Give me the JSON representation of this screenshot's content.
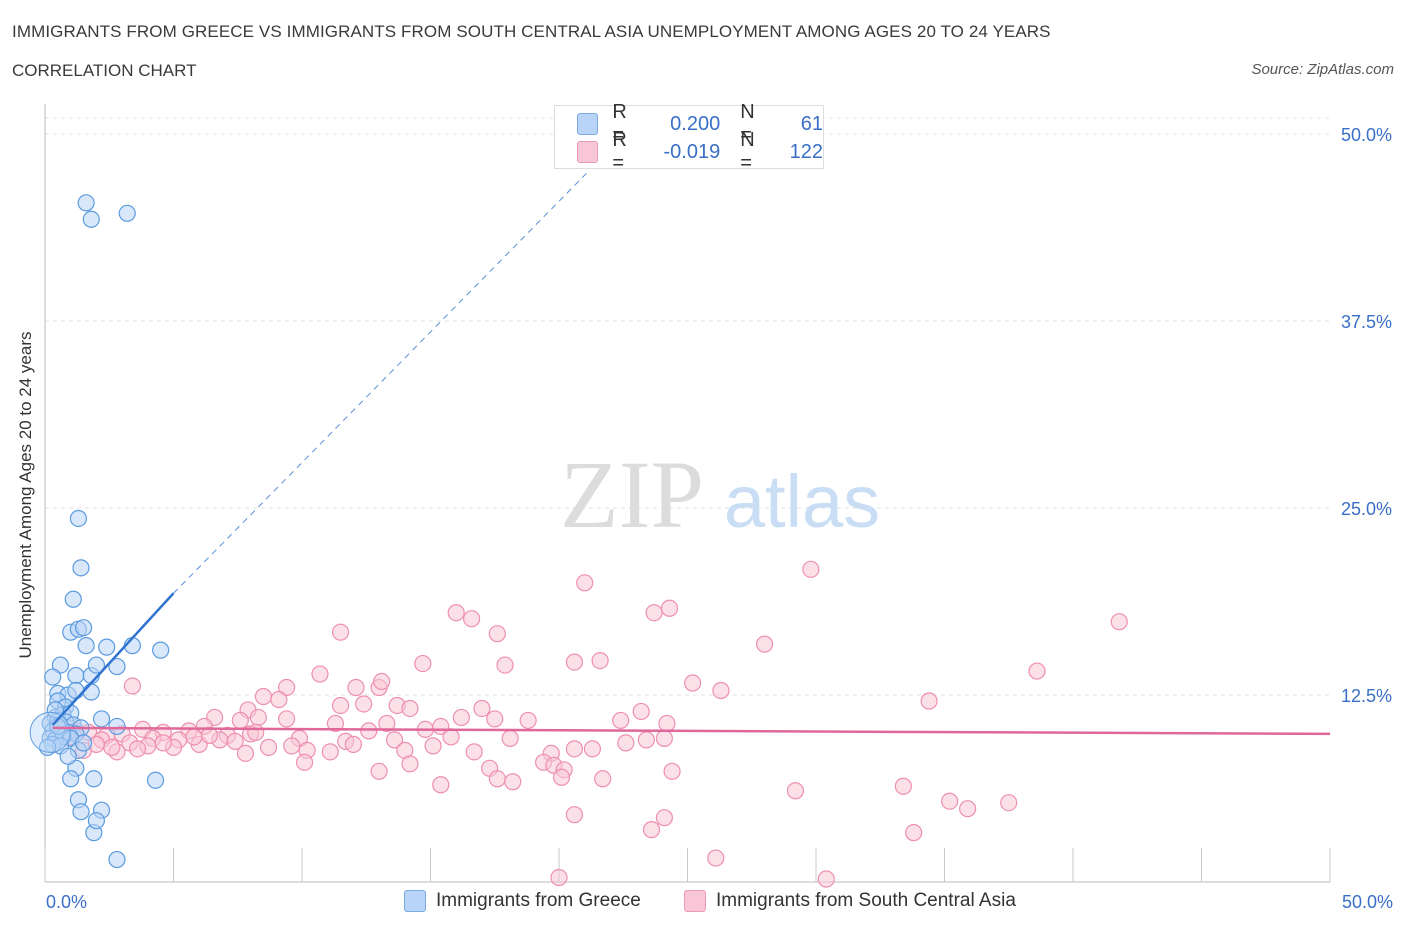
{
  "header": {
    "title": "IMMIGRANTS FROM GREECE VS IMMIGRANTS FROM SOUTH CENTRAL ASIA UNEMPLOYMENT AMONG AGES 20 TO 24 YEARS",
    "subtitle": "CORRELATION CHART",
    "source": "Source: ZipAtlas.com"
  },
  "legend": {
    "r_label": "R =",
    "n_label": "N =",
    "blue_r": "0.200",
    "blue_n": "61",
    "pink_r": "-0.019",
    "pink_n": "122"
  },
  "watermark": {
    "zip": "ZIP",
    "atlas": "atlas"
  },
  "colors": {
    "blue": "#5b9be0",
    "blue_fill": "#b8d4f6",
    "blue_line": "#2f74d0",
    "pink": "#ee8fb0",
    "pink_fill": "#f8c6d6",
    "pink_line": "#e0679a",
    "tick_text": "#3a6fc8",
    "grid": "#e2e2e2"
  },
  "chart_data": {
    "type": "scatter",
    "title": "IMMIGRANTS FROM GREECE VS IMMIGRANTS FROM SOUTH CENTRAL ASIA UNEMPLOYMENT AMONG AGES 20 TO 24 YEARS",
    "xlabel": "",
    "ylabel": "Unemployment Among Ages 20 to 24 years",
    "xlim": [
      0,
      50
    ],
    "ylim": [
      0,
      50
    ],
    "x_tick_labels": [
      "0.0%",
      "50.0%"
    ],
    "y_tick_values": [
      12.5,
      25,
      37.5,
      50
    ],
    "y_tick_labels": [
      "12.5%",
      "25.0%",
      "37.5%",
      "50.0%"
    ],
    "grid": true,
    "series": [
      {
        "name": "Immigrants from Greece",
        "color": "blue",
        "R": 0.2,
        "N": 61,
        "trend_solid": [
          [
            0.3,
            10.5
          ],
          [
            5.0,
            19.3
          ]
        ],
        "trend_dashed": [
          [
            5.0,
            19.3
          ],
          [
            21.2,
            47.6
          ]
        ],
        "points": [
          [
            1.6,
            45.4
          ],
          [
            1.8,
            44.3
          ],
          [
            3.2,
            44.7
          ],
          [
            1.3,
            24.3
          ],
          [
            1.4,
            21.0
          ],
          [
            1.1,
            18.9
          ],
          [
            1.0,
            16.7
          ],
          [
            1.3,
            16.9
          ],
          [
            1.5,
            17.0
          ],
          [
            1.6,
            15.8
          ],
          [
            2.4,
            15.7
          ],
          [
            3.4,
            15.8
          ],
          [
            4.5,
            15.5
          ],
          [
            0.6,
            14.5
          ],
          [
            1.2,
            13.8
          ],
          [
            1.8,
            13.8
          ],
          [
            2.0,
            14.5
          ],
          [
            2.8,
            14.4
          ],
          [
            0.3,
            13.7
          ],
          [
            0.5,
            12.6
          ],
          [
            0.9,
            12.5
          ],
          [
            1.2,
            12.8
          ],
          [
            1.8,
            12.7
          ],
          [
            0.5,
            12.1
          ],
          [
            0.8,
            11.7
          ],
          [
            0.4,
            11.0
          ],
          [
            0.7,
            11.2
          ],
          [
            1.0,
            11.3
          ],
          [
            0.2,
            10.6
          ],
          [
            0.5,
            10.8
          ],
          [
            0.8,
            10.7
          ],
          [
            1.1,
            10.5
          ],
          [
            1.4,
            10.3
          ],
          [
            0.3,
            10.1
          ],
          [
            0.6,
            10.2
          ],
          [
            0.9,
            10.0
          ],
          [
            1.2,
            9.9
          ],
          [
            0.2,
            9.6
          ],
          [
            0.4,
            9.5
          ],
          [
            0.7,
            9.7
          ],
          [
            1.0,
            9.6
          ],
          [
            0.3,
            9.2
          ],
          [
            0.6,
            9.1
          ],
          [
            0.1,
            9.0
          ],
          [
            1.3,
            8.8
          ],
          [
            2.8,
            10.4
          ],
          [
            1.2,
            7.6
          ],
          [
            1.0,
            6.9
          ],
          [
            1.9,
            6.9
          ],
          [
            4.3,
            6.8
          ],
          [
            1.3,
            5.5
          ],
          [
            1.4,
            4.7
          ],
          [
            2.2,
            4.8
          ],
          [
            1.9,
            3.3
          ],
          [
            2.8,
            1.5
          ],
          [
            2.0,
            4.1
          ],
          [
            0.9,
            8.4
          ],
          [
            1.5,
            9.3
          ],
          [
            0.5,
            10.4
          ],
          [
            2.2,
            10.9
          ],
          [
            0.4,
            11.5
          ]
        ]
      },
      {
        "name": "Immigrants from South Central Asia",
        "color": "pink",
        "R": -0.019,
        "N": 122,
        "trend": [
          [
            0.3,
            10.3
          ],
          [
            50.0,
            9.9
          ]
        ],
        "points": [
          [
            21.0,
            20.0
          ],
          [
            29.8,
            20.9
          ],
          [
            24.3,
            18.3
          ],
          [
            23.7,
            18.0
          ],
          [
            16.0,
            18.0
          ],
          [
            16.6,
            17.6
          ],
          [
            41.8,
            17.4
          ],
          [
            17.6,
            16.6
          ],
          [
            11.5,
            16.7
          ],
          [
            28.0,
            15.9
          ],
          [
            21.6,
            14.8
          ],
          [
            20.6,
            14.7
          ],
          [
            14.7,
            14.6
          ],
          [
            17.9,
            14.5
          ],
          [
            38.6,
            14.1
          ],
          [
            10.7,
            13.9
          ],
          [
            12.1,
            13.0
          ],
          [
            13.0,
            13.0
          ],
          [
            13.1,
            13.4
          ],
          [
            9.4,
            13.0
          ],
          [
            25.2,
            13.3
          ],
          [
            3.4,
            13.1
          ],
          [
            23.2,
            11.4
          ],
          [
            8.5,
            12.4
          ],
          [
            9.1,
            12.2
          ],
          [
            7.9,
            11.5
          ],
          [
            8.3,
            11.0
          ],
          [
            11.5,
            11.8
          ],
          [
            12.4,
            11.9
          ],
          [
            13.7,
            11.8
          ],
          [
            14.2,
            11.6
          ],
          [
            17.0,
            11.6
          ],
          [
            6.6,
            11.0
          ],
          [
            7.6,
            10.8
          ],
          [
            9.4,
            10.9
          ],
          [
            13.3,
            10.6
          ],
          [
            16.2,
            11.0
          ],
          [
            17.5,
            10.9
          ],
          [
            18.8,
            10.8
          ],
          [
            22.4,
            10.8
          ],
          [
            24.2,
            10.6
          ],
          [
            26.3,
            12.8
          ],
          [
            34.4,
            12.1
          ],
          [
            3.8,
            10.2
          ],
          [
            4.6,
            10.0
          ],
          [
            5.6,
            10.1
          ],
          [
            6.2,
            10.4
          ],
          [
            12.6,
            10.1
          ],
          [
            14.8,
            10.2
          ],
          [
            15.4,
            10.4
          ],
          [
            7.1,
            9.8
          ],
          [
            8.0,
            9.9
          ],
          [
            2.4,
            9.8
          ],
          [
            3.0,
            9.9
          ],
          [
            4.2,
            9.6
          ],
          [
            5.2,
            9.5
          ],
          [
            6.8,
            9.5
          ],
          [
            7.4,
            9.4
          ],
          [
            9.9,
            9.6
          ],
          [
            11.7,
            9.4
          ],
          [
            13.6,
            9.5
          ],
          [
            15.8,
            9.7
          ],
          [
            18.1,
            9.6
          ],
          [
            1.2,
            10.1
          ],
          [
            1.7,
            10.0
          ],
          [
            2.2,
            9.5
          ],
          [
            3.3,
            9.3
          ],
          [
            4.0,
            9.1
          ],
          [
            5.0,
            9.0
          ],
          [
            6.0,
            9.2
          ],
          [
            8.7,
            9.0
          ],
          [
            9.6,
            9.1
          ],
          [
            10.2,
            8.8
          ],
          [
            11.1,
            8.7
          ],
          [
            12.0,
            9.2
          ],
          [
            14.0,
            8.8
          ],
          [
            16.7,
            8.7
          ],
          [
            19.7,
            8.6
          ],
          [
            20.6,
            8.9
          ],
          [
            21.3,
            8.9
          ],
          [
            22.6,
            9.3
          ],
          [
            23.4,
            9.5
          ],
          [
            24.1,
            9.6
          ],
          [
            1.5,
            8.8
          ],
          [
            2.8,
            8.7
          ],
          [
            7.8,
            8.6
          ],
          [
            10.1,
            8.0
          ],
          [
            14.2,
            7.9
          ],
          [
            17.3,
            7.6
          ],
          [
            19.4,
            8.0
          ],
          [
            19.8,
            7.8
          ],
          [
            20.2,
            7.5
          ],
          [
            24.4,
            7.4
          ],
          [
            13.0,
            7.4
          ],
          [
            17.6,
            6.9
          ],
          [
            18.2,
            6.7
          ],
          [
            20.1,
            7.0
          ],
          [
            21.7,
            6.9
          ],
          [
            15.4,
            6.5
          ],
          [
            29.2,
            6.1
          ],
          [
            33.4,
            6.4
          ],
          [
            35.2,
            5.4
          ],
          [
            37.5,
            5.3
          ],
          [
            35.9,
            4.9
          ],
          [
            20.6,
            4.5
          ],
          [
            24.1,
            4.3
          ],
          [
            23.6,
            3.5
          ],
          [
            33.8,
            3.3
          ],
          [
            26.1,
            1.6
          ],
          [
            20.0,
            0.3
          ],
          [
            30.4,
            0.2
          ],
          [
            1.0,
            9.7
          ],
          [
            2.0,
            9.2
          ],
          [
            2.6,
            9.0
          ],
          [
            3.6,
            8.9
          ],
          [
            4.6,
            9.3
          ],
          [
            5.8,
            9.7
          ],
          [
            6.4,
            9.8
          ],
          [
            8.2,
            10.0
          ],
          [
            11.3,
            10.6
          ],
          [
            15.1,
            9.1
          ]
        ]
      }
    ]
  },
  "bottom_legend": {
    "blue_label": "Immigrants from Greece",
    "pink_label": "Immigrants from South Central Asia"
  }
}
